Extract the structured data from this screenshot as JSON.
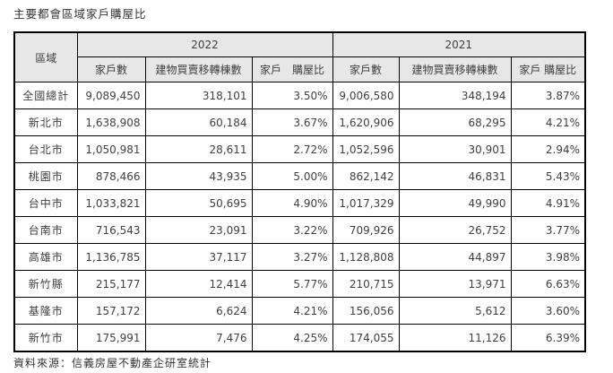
{
  "title": "主要都會區域家戶購屋比",
  "source_note": "資料來源：信義房屋不動產企研室統計",
  "colors": {
    "header_background": "#e7e7e7",
    "border": "#000000",
    "text": "#404040"
  },
  "table": {
    "region_header": "區域",
    "year_groups": [
      {
        "year": "2022",
        "columns": [
          "家戶數",
          "建物買賣移轉棟數",
          "家戶　購屋比"
        ]
      },
      {
        "year": "2021",
        "columns": [
          "家戶數",
          "建物買賣移轉棟數",
          "家戶 購屋比"
        ]
      }
    ],
    "rows": [
      {
        "region": "全國總計",
        "y2022": {
          "households": "9,089,450",
          "transfers": "318,101",
          "ratio": "3.50%"
        },
        "y2021": {
          "households": "9,006,580",
          "transfers": "348,194",
          "ratio": "3.87%"
        }
      },
      {
        "region": "新北市",
        "y2022": {
          "households": "1,638,908",
          "transfers": "60,184",
          "ratio": "3.67%"
        },
        "y2021": {
          "households": "1,620,906",
          "transfers": "68,295",
          "ratio": "4.21%"
        }
      },
      {
        "region": "台北市",
        "y2022": {
          "households": "1,050,981",
          "transfers": "28,611",
          "ratio": "2.72%"
        },
        "y2021": {
          "households": "1,052,596",
          "transfers": "30,901",
          "ratio": "2.94%"
        }
      },
      {
        "region": "桃園市",
        "y2022": {
          "households": "878,466",
          "transfers": "43,935",
          "ratio": "5.00%"
        },
        "y2021": {
          "households": "862,142",
          "transfers": "46,831",
          "ratio": "5.43%"
        }
      },
      {
        "region": "台中市",
        "y2022": {
          "households": "1,033,821",
          "transfers": "50,695",
          "ratio": "4.90%"
        },
        "y2021": {
          "households": "1,017,329",
          "transfers": "49,990",
          "ratio": "4.91%"
        }
      },
      {
        "region": "台南市",
        "y2022": {
          "households": "716,543",
          "transfers": "23,091",
          "ratio": "3.22%"
        },
        "y2021": {
          "households": "709,926",
          "transfers": "26,752",
          "ratio": "3.77%"
        }
      },
      {
        "region": "高雄市",
        "y2022": {
          "households": "1,136,785",
          "transfers": "37,117",
          "ratio": "3.27%"
        },
        "y2021": {
          "households": "1,128,808",
          "transfers": "44,897",
          "ratio": "3.98%"
        }
      },
      {
        "region": "新竹縣",
        "y2022": {
          "households": "215,177",
          "transfers": "12,414",
          "ratio": "5.77%"
        },
        "y2021": {
          "households": "210,715",
          "transfers": "13,971",
          "ratio": "6.63%"
        }
      },
      {
        "region": "基隆市",
        "y2022": {
          "households": "157,172",
          "transfers": "6,624",
          "ratio": "4.21%"
        },
        "y2021": {
          "households": "156,056",
          "transfers": "5,612",
          "ratio": "3.60%"
        }
      },
      {
        "region": "新竹市",
        "y2022": {
          "households": "175,991",
          "transfers": "7,476",
          "ratio": "4.25%"
        },
        "y2021": {
          "households": "174,055",
          "transfers": "11,126",
          "ratio": "6.39%"
        }
      }
    ]
  }
}
